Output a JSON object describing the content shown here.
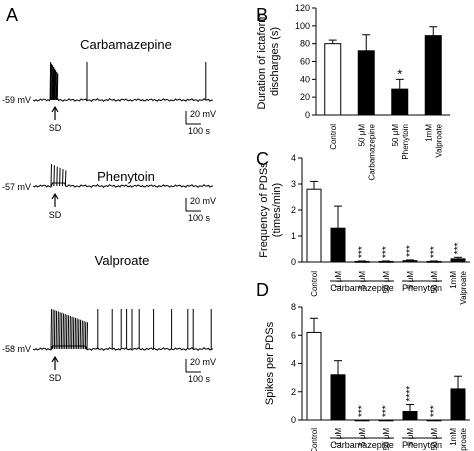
{
  "panels": {
    "A": {
      "letter": "A",
      "traces": [
        {
          "drug": "Carbamazepine",
          "baseline": "-59 mV",
          "event_label": "SD",
          "scale_v": "20 mV",
          "scale_t": "100 s",
          "burst": {
            "start": 0.095,
            "end": 0.135,
            "peak": 38,
            "lines": 8
          },
          "spikes": [
            0.3,
            0.96
          ],
          "spike_height": 38
        },
        {
          "drug": "Phenytoin",
          "baseline": "-57 mV",
          "event_label": "SD",
          "scale_v": "20 mV",
          "scale_t": "100 s",
          "burst": {
            "start": 0.1,
            "end": 0.18,
            "peak": 22,
            "lines": 6
          },
          "spikes": [],
          "spike_height": 0
        },
        {
          "drug": "Valproate",
          "baseline": "-58 mV",
          "event_label": "SD",
          "scale_v": "20 mV",
          "scale_t": "100 s",
          "burst": {
            "start": 0.1,
            "end": 0.3,
            "peak": 40,
            "lines": 22
          },
          "spikes": [
            0.36,
            0.44,
            0.49,
            0.52,
            0.55,
            0.59,
            0.67,
            0.77,
            0.86,
            0.89,
            0.99
          ],
          "spike_height": 40
        }
      ]
    },
    "B": {
      "letter": "B"
    },
    "C": {
      "letter": "C"
    },
    "D": {
      "letter": "D"
    }
  },
  "chart_data": [
    {
      "panel": "B",
      "type": "bar",
      "ylabel": "Duration of ictaform discharges (s)",
      "ylim": [
        0,
        120
      ],
      "yticks": [
        0,
        20,
        40,
        60,
        80,
        100,
        120
      ],
      "categories": [
        "Control",
        "50 μM Carbamazepine",
        "50 μM Phenytoin",
        "1mM Valproate"
      ],
      "category_lines": [
        [
          "Control"
        ],
        [
          "50 μM",
          "Carbamazepine"
        ],
        [
          "50 μM",
          "Phenytoin"
        ],
        [
          "1mM",
          "Valproate"
        ]
      ],
      "values": [
        80,
        72,
        29,
        89
      ],
      "errors": [
        4,
        18,
        11,
        10
      ],
      "fills": [
        "white",
        "black",
        "black",
        "black"
      ],
      "significance": [
        "",
        "",
        "*",
        ""
      ],
      "groups": []
    },
    {
      "panel": "C",
      "type": "bar",
      "ylabel": "Frequency of PDSs (times/min)",
      "ylim": [
        0,
        4
      ],
      "yticks": [
        0,
        1,
        2,
        3,
        4
      ],
      "categories": [
        "Control",
        "1 μM",
        "5 μM",
        "50 μM",
        "5 μM",
        "50 μM",
        "1mM Valproate"
      ],
      "category_lines": [
        [
          "Control"
        ],
        [
          "1 μM"
        ],
        [
          "5 μM"
        ],
        [
          "50 μM"
        ],
        [
          "5 μM"
        ],
        [
          "50 μM"
        ],
        [
          "1mM",
          "Valproate"
        ]
      ],
      "values": [
        2.8,
        1.3,
        0.02,
        0.02,
        0.05,
        0.02,
        0.12
      ],
      "errors": [
        0.3,
        0.85,
        0.02,
        0.02,
        0.03,
        0.02,
        0.06
      ],
      "fills": [
        "white",
        "black",
        "black",
        "black",
        "black",
        "black",
        "black"
      ],
      "significance": [
        "",
        "",
        "***",
        "***",
        "***",
        "***",
        "***"
      ],
      "groups": [
        {
          "label": "Carbamazepine",
          "from": 1,
          "to": 3
        },
        {
          "label": "Phenytoin",
          "from": 4,
          "to": 5
        }
      ]
    },
    {
      "panel": "D",
      "type": "bar",
      "ylabel": "Spikes per PDSs",
      "ylim": [
        0,
        8
      ],
      "yticks": [
        0,
        2,
        4,
        6,
        8
      ],
      "categories": [
        "Control",
        "1 μM",
        "5 μM",
        "50 μM",
        "5 μM",
        "50 μM",
        "1mM Valproate"
      ],
      "category_lines": [
        [
          "Control"
        ],
        [
          "1 μM"
        ],
        [
          "5 μM"
        ],
        [
          "50 μM"
        ],
        [
          "5 μM"
        ],
        [
          "50 μM"
        ],
        [
          "1mM",
          "Valproate"
        ]
      ],
      "values": [
        6.2,
        3.2,
        0,
        0,
        0.6,
        0,
        2.2
      ],
      "errors": [
        1.0,
        1.0,
        0,
        0,
        0.5,
        0,
        0.9
      ],
      "fills": [
        "white",
        "black",
        "black",
        "black",
        "black",
        "black",
        "black"
      ],
      "significance": [
        "",
        "",
        "***",
        "***",
        "****",
        "***",
        ""
      ],
      "groups": [
        {
          "label": "Carbamazepine",
          "from": 1,
          "to": 3
        },
        {
          "label": "Phenytoin",
          "from": 4,
          "to": 5
        }
      ]
    }
  ]
}
